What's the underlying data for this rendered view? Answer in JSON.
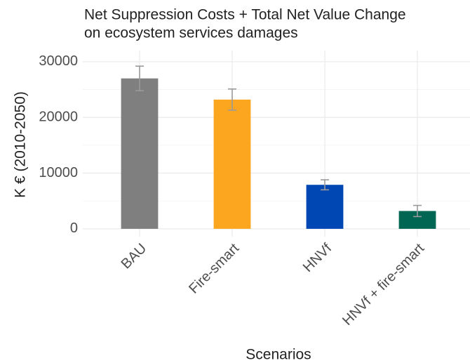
{
  "chart_data": {
    "type": "bar",
    "title": [
      "Net Suppression Costs + Total Net Value Change",
      "on ecosystem services damages"
    ],
    "x_label": "Scenarios",
    "y_label": "K € (2010-2050)",
    "categories": [
      "BAU",
      "Fire-smart",
      "HNVf",
      "HNVf + fire-smart"
    ],
    "values": [
      27000,
      23200,
      7900,
      3200
    ],
    "errors": [
      2200,
      1900,
      900,
      1000
    ],
    "colors": [
      "#7f7f7f",
      "#fca620",
      "#0047b3",
      "#006654"
    ],
    "error_color": "#9a9a9a",
    "ylim": [
      -1400,
      32000
    ],
    "yticks": [
      0,
      10000,
      20000,
      30000
    ],
    "minor_yticks": [
      5000,
      15000,
      25000
    ],
    "grid": true
  }
}
